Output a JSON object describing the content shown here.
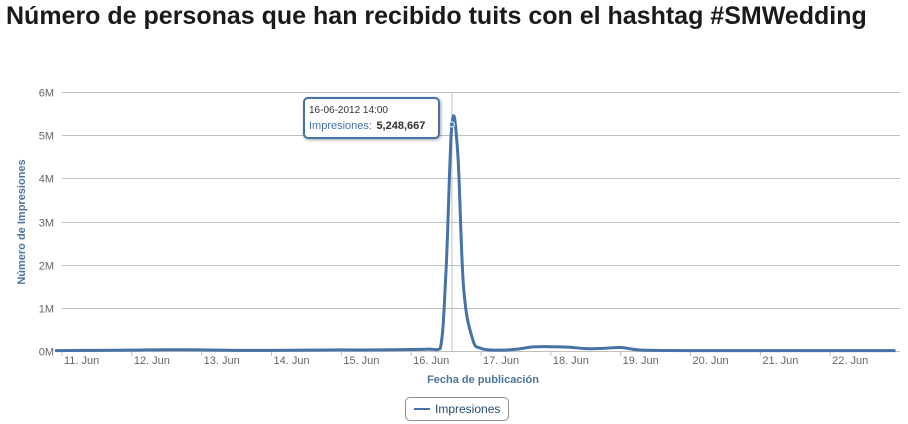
{
  "page_title": "Número de personas que han recibido tuits con el hashtag #SMWedding",
  "colors": {
    "series": "#4572a7",
    "axis_title": "#4d759e",
    "grid": "#c0c0c0",
    "tick_label": "#666666"
  },
  "chart_data": {
    "type": "line",
    "title": "Número de personas que han recibido tuits con el hashtag #SMWedding",
    "xlabel": "Fecha de publicación",
    "ylabel": "Número de Impresiones",
    "x_tick_labels": [
      "11. Jun",
      "12. Jun",
      "13. Jun",
      "14. Jun",
      "15. Jun",
      "16. Jun",
      "17. Jun",
      "18. Jun",
      "19. Jun",
      "20. Jun",
      "21. Jun",
      "22. Jun"
    ],
    "y_tick_labels": [
      "0M",
      "1M",
      "2M",
      "3M",
      "4M",
      "5M",
      "6M"
    ],
    "ylim": [
      0,
      6000000
    ],
    "xlim": [
      "2012-06-11",
      "2012-06-23"
    ],
    "grid": true,
    "legend_placement": "bottom-center",
    "series": [
      {
        "name": "Impresiones",
        "x": [
          "2012-06-10 22:00",
          "2012-06-11 12:00",
          "2012-06-12 00:00",
          "2012-06-12 12:00",
          "2012-06-13 00:00",
          "2012-06-13 12:00",
          "2012-06-14 00:00",
          "2012-06-14 12:00",
          "2012-06-15 00:00",
          "2012-06-15 12:00",
          "2012-06-16 00:00",
          "2012-06-16 06:00",
          "2012-06-16 10:00",
          "2012-06-16 12:00",
          "2012-06-16 14:00",
          "2012-06-16 16:00",
          "2012-06-16 18:00",
          "2012-06-16 21:00",
          "2012-06-17 00:00",
          "2012-06-17 06:00",
          "2012-06-17 12:00",
          "2012-06-17 18:00",
          "2012-06-18 00:00",
          "2012-06-18 06:00",
          "2012-06-18 12:00",
          "2012-06-18 18:00",
          "2012-06-19 00:00",
          "2012-06-19 06:00",
          "2012-06-19 12:00",
          "2012-06-20 00:00",
          "2012-06-21 00:00",
          "2012-06-22 00:00",
          "2012-06-22 22:00"
        ],
        "y": [
          10000,
          15000,
          20000,
          30000,
          25000,
          15000,
          15000,
          20000,
          25000,
          25000,
          35000,
          45000,
          60000,
          1900000,
          5248667,
          4600000,
          1500000,
          300000,
          60000,
          20000,
          40000,
          95000,
          100000,
          90000,
          55000,
          60000,
          80000,
          25000,
          15000,
          10000,
          10000,
          10000,
          10000
        ]
      }
    ],
    "tooltip": {
      "date": "16-06-2012 14:00",
      "series_label": "Impresiones:",
      "value": "5,248,667"
    }
  }
}
